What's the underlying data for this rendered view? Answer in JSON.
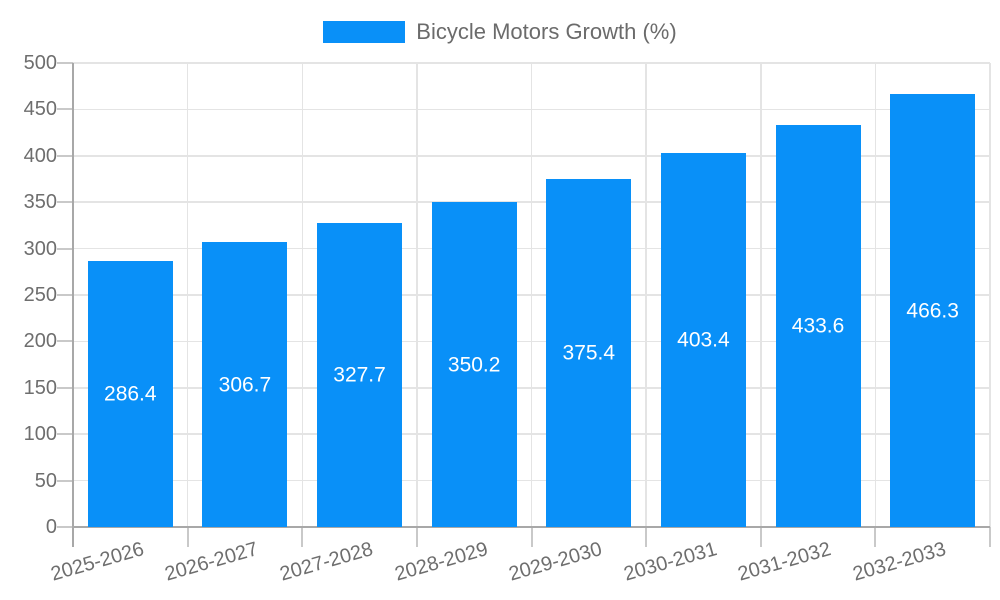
{
  "chart_data": {
    "type": "bar",
    "legend_label": "Bicycle Motors Growth (%)",
    "legend_position": "top",
    "categories": [
      "2025-2026",
      "2026-2027",
      "2027-2028",
      "2028-2029",
      "2029-2030",
      "2030-2031",
      "2031-2032",
      "2032-2033"
    ],
    "values": [
      286.4,
      306.7,
      327.7,
      350.2,
      375.4,
      403.4,
      433.6,
      466.3
    ],
    "value_labels": [
      "286.4",
      "306.7",
      "327.7",
      "350.2",
      "375.4",
      "403.4",
      "433.6",
      "466.3"
    ],
    "xlabel": "",
    "ylabel": "",
    "ylim": [
      0,
      500
    ],
    "ytick_step": 50,
    "yticks": [
      "0",
      "50",
      "100",
      "150",
      "200",
      "250",
      "300",
      "350",
      "400",
      "450",
      "500"
    ],
    "grid": true,
    "x_label_rotation_deg": -16,
    "colors": {
      "bar": "#0990f8",
      "grid_line": "#e4e4e4",
      "axis_line": "#a8a8a8",
      "tick_line": "#c9c9c9",
      "tick_text": "#6e6e6e",
      "legend_text": "#6b6b6b",
      "bar_label_text": "#ffffff",
      "background": "#ffffff"
    }
  }
}
